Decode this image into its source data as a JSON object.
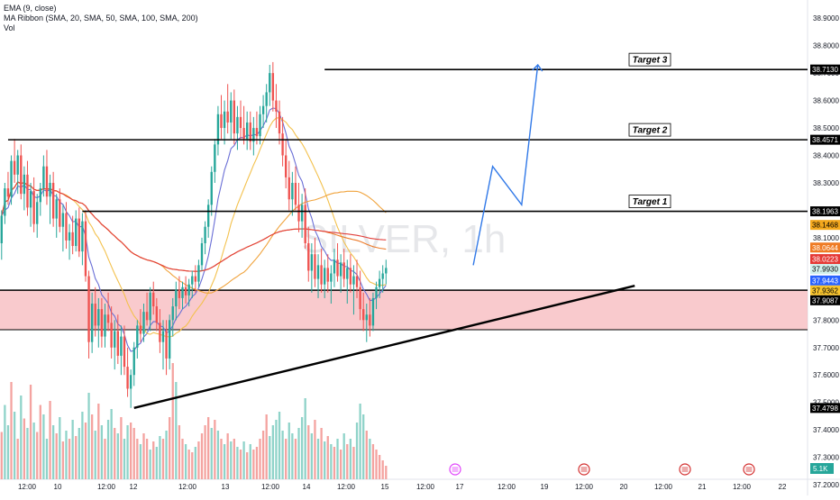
{
  "legend": {
    "ema": "EMA (9, close)",
    "ribbon": "MA Ribbon (SMA, 20, SMA, 50, SMA, 100, SMA, 200)",
    "vol": "Vol"
  },
  "watermark": "SILVER, 1h",
  "colors": {
    "up": "#26a69a",
    "down": "#ef5350",
    "vol_up": "#8fd3c9",
    "vol_down": "#f4a3a0",
    "zone": "#f6b3b8",
    "projection": "#3179e8",
    "trendline": "#000000"
  },
  "chart_data": {
    "type": "candlestick",
    "price_axis": {
      "range": [
        37.22,
        38.94
      ],
      "ticks": [
        "38.9000",
        "38.8000",
        "38.7000",
        "38.6000",
        "38.5000",
        "38.4000",
        "38.3000",
        "38.2000",
        "38.1000",
        "38.0000",
        "37.9000",
        "37.8000",
        "37.7000",
        "37.6000",
        "37.5000",
        "37.4000",
        "37.3000",
        "37.2000"
      ]
    },
    "time_axis": {
      "labels": [
        "12:00",
        "10",
        "12:00",
        "12",
        "12:00",
        "13",
        "12:00",
        "14",
        "12:00",
        "15",
        "12:00",
        "17",
        "12:00",
        "19",
        "12:00",
        "20",
        "12:00",
        "21",
        "12:00",
        "22"
      ],
      "bars_total": 250
    },
    "price_labels": [
      {
        "value": "38.7130",
        "style": "black"
      },
      {
        "value": "38.4571",
        "style": "black"
      },
      {
        "value": "38.1963",
        "style": "black"
      },
      {
        "value": "38.1468",
        "style": "orange"
      },
      {
        "value": "38.0644",
        "style": "darkorange"
      },
      {
        "value": "38.0223",
        "style": "red"
      },
      {
        "value": "37.9930",
        "style": "teal"
      },
      {
        "value": "37.9443",
        "style": "blue"
      },
      {
        "value": "37.9362",
        "style": "gold"
      },
      {
        "value": "37.9087",
        "style": "black"
      },
      {
        "value": "37.4798",
        "style": "black"
      }
    ],
    "volume_label": "5.1K",
    "targets": [
      {
        "label": "Target 3",
        "price": 38.713,
        "from_bar": 100
      },
      {
        "label": "Target 2",
        "price": 38.4571,
        "from_bar": 2
      },
      {
        "label": "Target 1",
        "price": 38.1963,
        "from_bar": 25
      }
    ],
    "support_zone": {
      "top": 37.9087,
      "bottom": 37.765
    },
    "trendline": {
      "start": [
        41,
        37.48
      ],
      "end": [
        196,
        37.925
      ]
    },
    "projection": [
      [
        146,
        38.0
      ],
      [
        152,
        38.36
      ],
      [
        161,
        38.22
      ],
      [
        166,
        38.73
      ]
    ],
    "candles": [
      [
        38.08,
        38.2,
        38.02,
        38.18
      ],
      [
        38.18,
        38.3,
        38.15,
        38.28
      ],
      [
        38.28,
        38.34,
        38.22,
        38.25
      ],
      [
        38.25,
        38.4,
        38.22,
        38.38
      ],
      [
        38.38,
        38.46,
        38.3,
        38.33
      ],
      [
        38.33,
        38.42,
        38.26,
        38.4
      ],
      [
        38.4,
        38.44,
        38.24,
        38.26
      ],
      [
        38.26,
        38.36,
        38.2,
        38.33
      ],
      [
        38.33,
        38.38,
        38.18,
        38.21
      ],
      [
        38.21,
        38.3,
        38.14,
        38.27
      ],
      [
        38.27,
        38.32,
        38.12,
        38.15
      ],
      [
        38.15,
        38.26,
        38.1,
        38.23
      ],
      [
        38.23,
        38.3,
        38.18,
        38.28
      ],
      [
        38.28,
        38.4,
        38.25,
        38.36
      ],
      [
        38.36,
        38.42,
        38.22,
        38.25
      ],
      [
        38.25,
        38.33,
        38.15,
        38.3
      ],
      [
        38.3,
        38.34,
        38.14,
        38.17
      ],
      [
        38.17,
        38.26,
        38.1,
        38.24
      ],
      [
        38.24,
        38.28,
        38.12,
        38.14
      ],
      [
        38.14,
        38.22,
        38.05,
        38.19
      ],
      [
        38.19,
        38.23,
        38.06,
        38.09
      ],
      [
        38.09,
        38.15,
        38.02,
        38.12
      ],
      [
        38.12,
        38.18,
        38.04,
        38.07
      ],
      [
        38.07,
        38.2,
        38.05,
        38.17
      ],
      [
        38.17,
        38.21,
        38.03,
        38.05
      ],
      [
        38.05,
        38.19,
        38.0,
        38.16
      ],
      [
        38.16,
        38.2,
        37.94,
        37.96
      ],
      [
        37.96,
        37.98,
        37.66,
        37.72
      ],
      [
        37.72,
        37.9,
        37.68,
        37.86
      ],
      [
        37.86,
        37.92,
        37.74,
        37.78
      ],
      [
        37.78,
        37.88,
        37.7,
        37.84
      ],
      [
        37.84,
        37.88,
        37.7,
        37.74
      ],
      [
        37.74,
        37.86,
        37.7,
        37.82
      ],
      [
        37.82,
        37.9,
        37.76,
        37.79
      ],
      [
        37.79,
        37.85,
        37.66,
        37.7
      ],
      [
        37.7,
        37.8,
        37.62,
        37.76
      ],
      [
        37.76,
        37.82,
        37.64,
        37.67
      ],
      [
        37.67,
        37.78,
        37.6,
        37.74
      ],
      [
        37.74,
        37.78,
        37.6,
        37.63
      ],
      [
        37.63,
        37.7,
        37.52,
        37.55
      ],
      [
        37.55,
        37.62,
        37.48,
        37.6
      ],
      [
        37.6,
        37.72,
        37.56,
        37.7
      ],
      [
        37.7,
        37.8,
        37.66,
        37.78
      ],
      [
        37.78,
        37.84,
        37.72,
        37.75
      ],
      [
        37.75,
        37.86,
        37.72,
        37.83
      ],
      [
        37.83,
        37.9,
        37.78,
        37.8
      ],
      [
        37.8,
        37.92,
        37.76,
        37.9
      ],
      [
        37.9,
        37.94,
        37.82,
        37.85
      ],
      [
        37.85,
        37.88,
        37.76,
        37.79
      ],
      [
        37.79,
        37.84,
        37.68,
        37.72
      ],
      [
        37.72,
        37.8,
        37.62,
        37.76
      ],
      [
        37.76,
        37.8,
        37.6,
        37.66
      ],
      [
        37.66,
        37.82,
        37.62,
        37.8
      ],
      [
        37.8,
        37.88,
        37.74,
        37.85
      ],
      [
        37.85,
        37.94,
        37.8,
        37.91
      ],
      [
        37.91,
        37.96,
        37.84,
        37.88
      ],
      [
        37.88,
        37.94,
        37.84,
        37.92
      ],
      [
        37.92,
        37.96,
        37.86,
        37.89
      ],
      [
        37.89,
        37.95,
        37.85,
        37.93
      ],
      [
        37.93,
        37.98,
        37.88,
        37.96
      ],
      [
        37.96,
        38.0,
        37.9,
        37.94
      ],
      [
        37.94,
        38.02,
        37.92,
        38.0
      ],
      [
        38.0,
        38.1,
        37.98,
        38.08
      ],
      [
        38.08,
        38.16,
        38.04,
        38.14
      ],
      [
        38.14,
        38.24,
        38.1,
        38.22
      ],
      [
        38.22,
        38.36,
        38.18,
        38.34
      ],
      [
        38.34,
        38.46,
        38.3,
        38.44
      ],
      [
        38.44,
        38.58,
        38.4,
        38.55
      ],
      [
        38.55,
        38.62,
        38.46,
        38.5
      ],
      [
        38.5,
        38.6,
        38.44,
        38.56
      ],
      [
        38.56,
        38.66,
        38.48,
        38.52
      ],
      [
        38.52,
        38.63,
        38.46,
        38.6
      ],
      [
        38.6,
        38.64,
        38.44,
        38.48
      ],
      [
        38.48,
        38.58,
        38.42,
        38.54
      ],
      [
        38.54,
        38.6,
        38.46,
        38.5
      ],
      [
        38.5,
        38.58,
        38.44,
        38.46
      ],
      [
        38.46,
        38.56,
        38.42,
        38.52
      ],
      [
        38.52,
        38.56,
        38.42,
        38.45
      ],
      [
        38.45,
        38.54,
        38.4,
        38.5
      ],
      [
        38.5,
        38.56,
        38.44,
        38.47
      ],
      [
        38.47,
        38.58,
        38.44,
        38.55
      ],
      [
        38.55,
        38.62,
        38.5,
        38.58
      ],
      [
        38.58,
        38.66,
        38.52,
        38.63
      ],
      [
        38.63,
        38.73,
        38.58,
        38.7
      ],
      [
        38.7,
        38.74,
        38.56,
        38.6
      ],
      [
        38.6,
        38.66,
        38.5,
        38.56
      ],
      [
        38.56,
        38.6,
        38.44,
        38.48
      ],
      [
        38.48,
        38.54,
        38.36,
        38.4
      ],
      [
        38.4,
        38.46,
        38.28,
        38.32
      ],
      [
        38.32,
        38.38,
        38.2,
        38.24
      ],
      [
        38.24,
        38.34,
        38.18,
        38.3
      ],
      [
        38.3,
        38.36,
        38.2,
        38.22
      ],
      [
        38.22,
        38.3,
        38.12,
        38.16
      ],
      [
        38.16,
        38.26,
        38.1,
        38.22
      ],
      [
        38.22,
        38.28,
        38.06,
        38.08
      ],
      [
        38.08,
        38.14,
        37.94,
        37.98
      ],
      [
        37.98,
        38.08,
        37.9,
        38.04
      ],
      [
        38.04,
        38.1,
        37.92,
        37.95
      ],
      [
        37.95,
        38.04,
        37.88,
        38.0
      ],
      [
        38.0,
        38.06,
        37.9,
        37.93
      ],
      [
        37.93,
        38.02,
        37.88,
        37.99
      ],
      [
        37.99,
        38.04,
        37.9,
        37.94
      ],
      [
        37.94,
        38.0,
        37.86,
        37.97
      ],
      [
        37.97,
        38.06,
        37.92,
        38.02
      ],
      [
        38.02,
        38.08,
        37.94,
        37.96
      ],
      [
        37.96,
        38.04,
        37.9,
        38.01
      ],
      [
        38.01,
        38.06,
        37.92,
        37.95
      ],
      [
        37.95,
        38.02,
        37.86,
        37.99
      ],
      [
        37.99,
        38.04,
        37.9,
        37.93
      ],
      [
        37.93,
        38.0,
        37.82,
        37.96
      ],
      [
        37.96,
        38.02,
        37.88,
        37.92
      ],
      [
        37.92,
        37.98,
        37.8,
        37.84
      ],
      [
        37.84,
        37.9,
        37.76,
        37.8
      ],
      [
        37.8,
        37.86,
        37.72,
        37.82
      ],
      [
        37.82,
        37.88,
        37.74,
        37.78
      ],
      [
        37.78,
        37.9,
        37.76,
        37.88
      ],
      [
        37.88,
        37.94,
        37.84,
        37.92
      ],
      [
        37.92,
        37.98,
        37.88,
        37.95
      ],
      [
        37.95,
        38.0,
        37.9,
        37.97
      ],
      [
        37.97,
        38.02,
        37.93,
        37.99
      ]
    ],
    "volumes": [
      [
        0.35,
        0
      ],
      [
        0.55,
        1
      ],
      [
        0.4,
        1
      ],
      [
        0.72,
        0
      ],
      [
        0.5,
        1
      ],
      [
        0.3,
        0
      ],
      [
        0.62,
        1
      ],
      [
        0.45,
        0
      ],
      [
        0.38,
        1
      ],
      [
        0.7,
        0
      ],
      [
        0.42,
        1
      ],
      [
        0.35,
        0
      ],
      [
        0.55,
        0
      ],
      [
        0.48,
        1
      ],
      [
        0.3,
        1
      ],
      [
        0.58,
        0
      ],
      [
        0.4,
        1
      ],
      [
        0.34,
        0
      ],
      [
        0.46,
        1
      ],
      [
        0.28,
        0
      ],
      [
        0.36,
        1
      ],
      [
        0.3,
        0
      ],
      [
        0.44,
        1
      ],
      [
        0.32,
        0
      ],
      [
        0.38,
        1
      ],
      [
        0.5,
        1
      ],
      [
        0.42,
        0
      ],
      [
        0.64,
        1
      ],
      [
        0.48,
        0
      ],
      [
        0.36,
        1
      ],
      [
        0.56,
        0
      ],
      [
        0.4,
        1
      ],
      [
        0.3,
        0
      ],
      [
        0.44,
        1
      ],
      [
        0.52,
        1
      ],
      [
        0.38,
        0
      ],
      [
        0.34,
        1
      ],
      [
        0.46,
        0
      ],
      [
        0.3,
        1
      ],
      [
        0.4,
        1
      ],
      [
        0.42,
        0
      ],
      [
        0.38,
        0
      ],
      [
        0.3,
        0
      ],
      [
        0.26,
        1
      ],
      [
        0.34,
        0
      ],
      [
        0.3,
        0
      ],
      [
        0.22,
        1
      ],
      [
        0.28,
        0
      ],
      [
        0.24,
        1
      ],
      [
        0.32,
        1
      ],
      [
        0.3,
        0
      ],
      [
        0.36,
        1
      ],
      [
        0.46,
        0
      ],
      [
        0.86,
        0
      ],
      [
        0.72,
        1
      ],
      [
        0.4,
        0
      ],
      [
        0.3,
        0
      ],
      [
        0.26,
        1
      ],
      [
        0.22,
        0
      ],
      [
        0.2,
        0
      ],
      [
        0.24,
        1
      ],
      [
        0.28,
        0
      ],
      [
        0.34,
        0
      ],
      [
        0.4,
        0
      ],
      [
        0.46,
        0
      ],
      [
        0.38,
        1
      ],
      [
        0.44,
        0
      ],
      [
        0.36,
        1
      ],
      [
        0.3,
        0
      ],
      [
        0.26,
        1
      ],
      [
        0.34,
        0
      ],
      [
        0.28,
        1
      ],
      [
        0.3,
        0
      ],
      [
        0.24,
        1
      ],
      [
        0.22,
        0
      ],
      [
        0.28,
        1
      ],
      [
        0.2,
        0
      ],
      [
        0.26,
        1
      ],
      [
        0.22,
        0
      ],
      [
        0.24,
        0
      ],
      [
        0.3,
        0
      ],
      [
        0.36,
        0
      ],
      [
        0.48,
        0
      ],
      [
        0.32,
        1
      ],
      [
        0.4,
        1
      ],
      [
        0.44,
        1
      ],
      [
        0.5,
        1
      ],
      [
        0.36,
        1
      ],
      [
        0.3,
        0
      ],
      [
        0.42,
        1
      ],
      [
        0.34,
        1
      ],
      [
        0.3,
        0
      ],
      [
        0.38,
        1
      ],
      [
        0.46,
        1
      ],
      [
        0.6,
        1
      ],
      [
        0.4,
        0
      ],
      [
        0.34,
        1
      ],
      [
        0.44,
        0
      ],
      [
        0.3,
        1
      ],
      [
        0.38,
        0
      ],
      [
        0.28,
        1
      ],
      [
        0.32,
        0
      ],
      [
        0.26,
        1
      ],
      [
        0.24,
        0
      ],
      [
        0.3,
        1
      ],
      [
        0.22,
        0
      ],
      [
        0.34,
        1
      ],
      [
        0.26,
        0
      ],
      [
        0.3,
        1
      ],
      [
        0.24,
        0
      ],
      [
        0.42,
        1
      ],
      [
        0.56,
        1
      ],
      [
        0.48,
        1
      ],
      [
        0.36,
        0
      ],
      [
        0.3,
        1
      ],
      [
        0.26,
        0
      ],
      [
        0.22,
        0
      ],
      [
        0.18,
        0
      ],
      [
        0.14,
        0
      ],
      [
        0.1,
        0
      ]
    ]
  }
}
